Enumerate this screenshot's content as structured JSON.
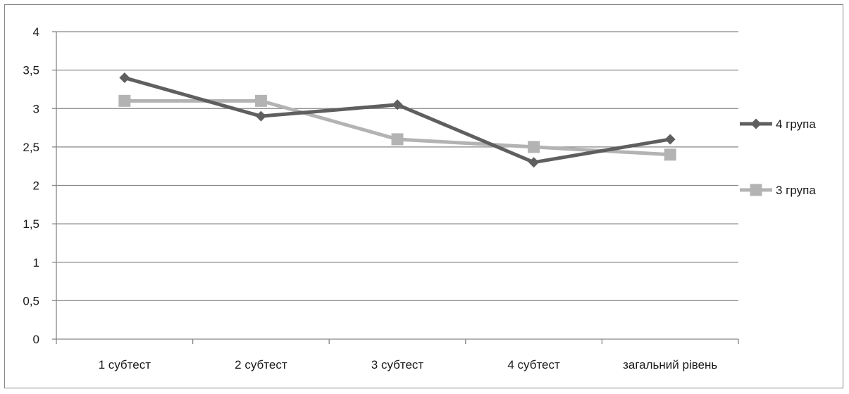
{
  "chart_data": {
    "type": "line",
    "title": "",
    "xlabel": "",
    "ylabel": "",
    "categories": [
      "1 субтест",
      "2 субтест",
      "3 субтест",
      "4 субтест",
      "загальний рівень"
    ],
    "y_ticks": [
      "0",
      "0,5",
      "1",
      "1,5",
      "2",
      "2,5",
      "3",
      "3,5",
      "4"
    ],
    "ylim": [
      0,
      4
    ],
    "grid": "horizontal",
    "legend_position": "right",
    "series": [
      {
        "name": "4 група",
        "values": [
          3.4,
          2.9,
          3.05,
          2.3,
          2.6
        ],
        "color": "#5f5f5f",
        "marker": "diamond"
      },
      {
        "name": "3 група",
        "values": [
          3.1,
          3.1,
          2.6,
          2.5,
          2.4
        ],
        "color": "#b3b3b3",
        "marker": "square"
      }
    ]
  }
}
